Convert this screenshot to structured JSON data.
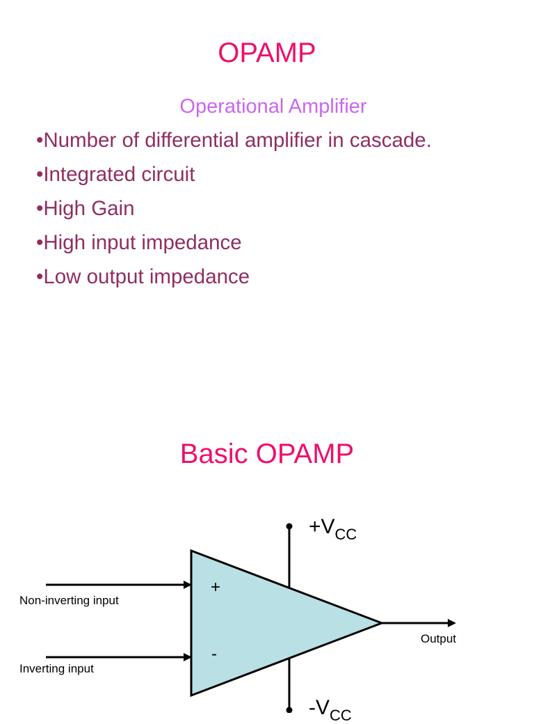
{
  "slide1": {
    "title": "OPAMP",
    "subtitle": "Operational Amplifier",
    "bullets": [
      "•Number of differential amplifier in cascade.",
      "•Integrated circuit",
      "•High Gain",
      "•High input impedance",
      "•Low output impedance"
    ]
  },
  "slide2": {
    "title": "Basic OPAMP",
    "diagram": {
      "plus_sign": "+",
      "minus_sign": "-",
      "vcc_positive_prefix": "+V",
      "vcc_positive_sub": "CC",
      "vcc_negative_prefix": "-V",
      "vcc_negative_sub": "CC",
      "non_inverting_label": "Non-inverting input",
      "inverting_label": "Inverting input",
      "output_label": "Output"
    }
  },
  "colors": {
    "title": "#ee0f6d",
    "subtitle": "#cc66ee",
    "bullet_text": "#8f2e62",
    "opamp_fill": "#b9e0e4",
    "lines": "#000000"
  }
}
